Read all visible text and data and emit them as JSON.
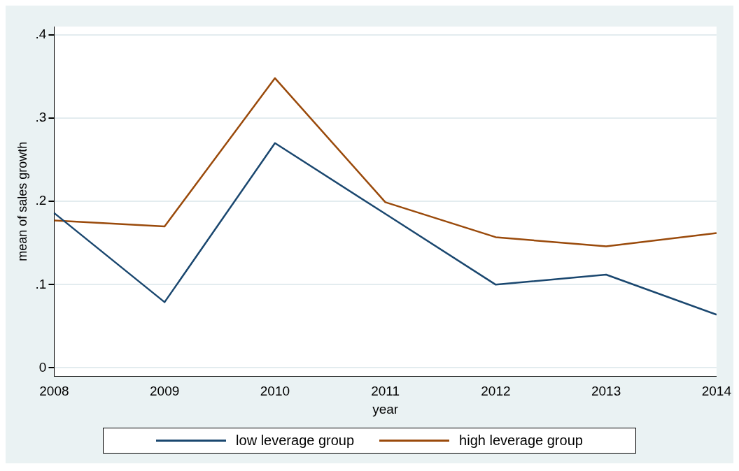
{
  "chart_data": {
    "type": "line",
    "xlabel": "year",
    "ylabel": "mean of sales growth",
    "categories": [
      "2008",
      "2009",
      "2010",
      "2011",
      "2012",
      "2013",
      "2014"
    ],
    "series": [
      {
        "name": "low leverage group",
        "color": "#1a476f",
        "values": [
          0.186,
          0.079,
          0.27,
          0.185,
          0.1,
          0.112,
          0.064
        ]
      },
      {
        "name": "high leverage group",
        "color": "#9a4a0b",
        "values": [
          0.177,
          0.17,
          0.348,
          0.199,
          0.157,
          0.146,
          0.162
        ]
      }
    ],
    "ylim": [
      -0.01,
      0.41
    ],
    "yticks": [
      0,
      {
        "value": 0.1,
        "label": ".1"
      },
      {
        "value": 0.2,
        "label": ".2"
      },
      {
        "value": 0.3,
        "label": ".3"
      },
      {
        "value": 0.4,
        "label": ".4"
      }
    ],
    "grid": "y",
    "legend": "bottom"
  }
}
